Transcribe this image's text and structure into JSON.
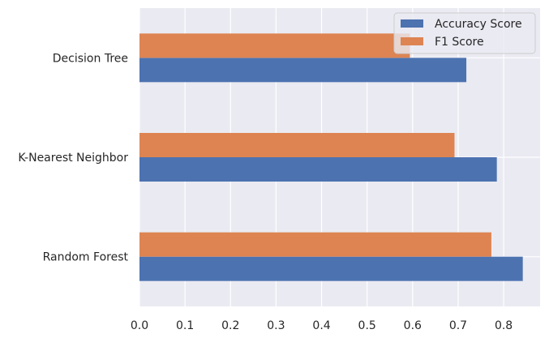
{
  "chart_data": {
    "type": "bar",
    "orientation": "horizontal",
    "categories": [
      "Random Forest",
      "K-Nearest Neighbor",
      "Decision Tree"
    ],
    "series": [
      {
        "name": "Accuracy Score",
        "color": "#4c72b0",
        "values": [
          0.842,
          0.785,
          0.718
        ]
      },
      {
        "name": "F1 Score",
        "color": "#dd8452",
        "values": [
          0.773,
          0.692,
          0.594
        ]
      }
    ],
    "xlim": [
      0.0,
      0.88
    ],
    "xticks": [
      0.0,
      0.1,
      0.2,
      0.3,
      0.4,
      0.5,
      0.6,
      0.7,
      0.8
    ],
    "xtick_labels": [
      "0.0",
      "0.1",
      "0.2",
      "0.3",
      "0.4",
      "0.5",
      "0.6",
      "0.7",
      "0.8"
    ],
    "title": "",
    "xlabel": "",
    "ylabel": "",
    "grid": true,
    "legend_position": "top-right",
    "background_color": "#eaeaf2",
    "grid_color": "#ffffff"
  }
}
